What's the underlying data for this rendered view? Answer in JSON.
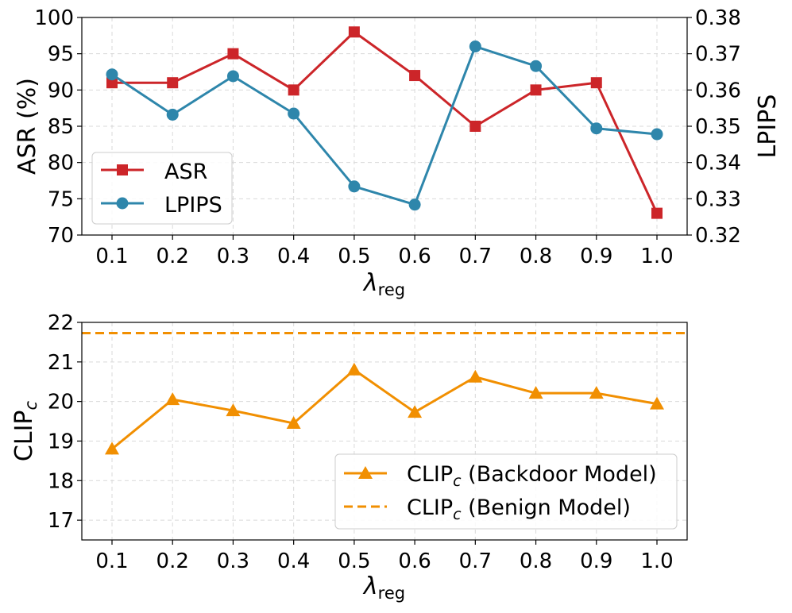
{
  "chart_data": [
    {
      "type": "line",
      "x": [
        0.1,
        0.2,
        0.3,
        0.4,
        0.5,
        0.6,
        0.7,
        0.8,
        0.9,
        1.0
      ],
      "x_tick_labels": [
        "0.1",
        "0.2",
        "0.3",
        "0.4",
        "0.5",
        "0.6",
        "0.7",
        "0.8",
        "0.9",
        "1.0"
      ],
      "xlabel_main": "λ",
      "xlabel_sub": "reg",
      "ylabel": "ASR (%)",
      "ylabel_right": "LPIPS",
      "ylim": [
        70,
        100
      ],
      "y_ticks": [
        "70",
        "75",
        "80",
        "85",
        "90",
        "95",
        "100"
      ],
      "ylim_right": [
        0.32,
        0.38
      ],
      "y_ticks_right": [
        "0.32",
        "0.33",
        "0.34",
        "0.35",
        "0.36",
        "0.37",
        "0.38"
      ],
      "grid": true,
      "legend_position": "center-left",
      "series": [
        {
          "name": "ASR",
          "axis": "left",
          "marker": "square",
          "color": "#cc2529",
          "values": [
            91,
            91,
            95,
            90,
            98,
            92,
            85,
            90,
            91,
            73
          ]
        },
        {
          "name": "LPIPS",
          "axis": "right",
          "marker": "circle",
          "color": "#2e86ab",
          "values": [
            0.3643,
            0.3532,
            0.3638,
            0.3535,
            0.3334,
            0.3284,
            0.372,
            0.3666,
            0.3494,
            0.3478
          ]
        }
      ]
    },
    {
      "type": "line",
      "x": [
        0.1,
        0.2,
        0.3,
        0.4,
        0.5,
        0.6,
        0.7,
        0.8,
        0.9,
        1.0
      ],
      "x_tick_labels": [
        "0.1",
        "0.2",
        "0.3",
        "0.4",
        "0.5",
        "0.6",
        "0.7",
        "0.8",
        "0.9",
        "1.0"
      ],
      "xlabel_main": "λ",
      "xlabel_sub": "reg",
      "ylabel_main": "CLIP",
      "ylabel_sub": "c",
      "ylim": [
        16.5,
        22.0
      ],
      "y_ticks": [
        "17",
        "18",
        "19",
        "20",
        "21",
        "22"
      ],
      "grid": true,
      "legend_position": "bottom-right",
      "series": [
        {
          "name_main": "CLIP",
          "name_sub": "c",
          "name_rest": " (Backdoor Model)",
          "marker": "triangle",
          "line": "solid",
          "color": "#f18f01",
          "values": [
            18.8,
            20.05,
            19.77,
            19.45,
            20.8,
            19.73,
            20.62,
            20.21,
            20.21,
            19.94
          ]
        },
        {
          "name_main": "CLIP",
          "name_sub": "c",
          "name_rest": " (Benign Model)",
          "marker": "none",
          "line": "dashed",
          "color": "#f18f01",
          "constant": 21.73
        }
      ]
    }
  ]
}
